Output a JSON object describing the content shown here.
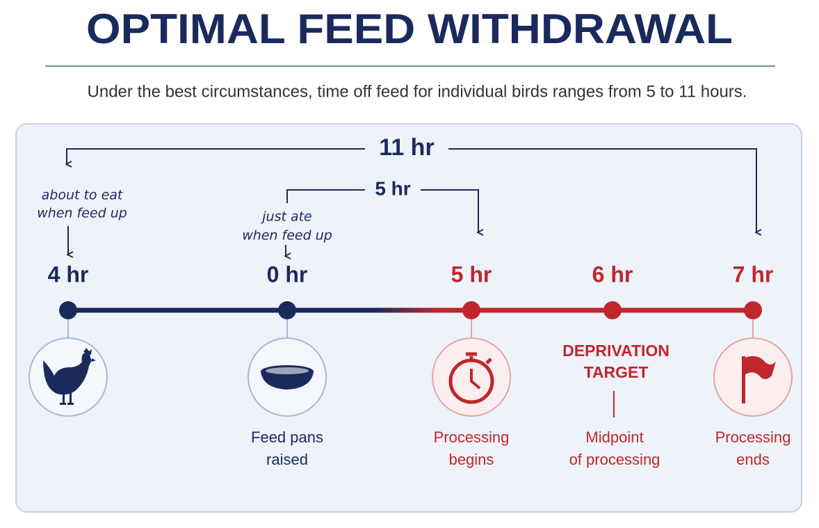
{
  "header": {
    "title": "OPTIMAL FEED WITHDRAWAL",
    "subtitle": "Under the best circumstances, time off feed for individual birds ranges from 5 to 11 hours."
  },
  "spans": [
    {
      "label": "11 hr"
    },
    {
      "label": "5 hr"
    }
  ],
  "notes": [
    {
      "lines": [
        "about to eat",
        "when feed up"
      ]
    },
    {
      "lines": [
        "just ate",
        "when feed up"
      ]
    }
  ],
  "nodes": [
    {
      "label": "4 hr"
    },
    {
      "label": "0 hr",
      "caption": [
        "Feed pans",
        "raised"
      ]
    },
    {
      "label": "5 hr",
      "caption": [
        "Processing",
        "begins"
      ]
    },
    {
      "label": "6 hr",
      "target": [
        "DEPRIVATION",
        "TARGET"
      ],
      "caption": [
        "Midpoint",
        "of processing"
      ]
    },
    {
      "label": "7 hr",
      "caption": [
        "Processing",
        "ends"
      ]
    }
  ]
}
